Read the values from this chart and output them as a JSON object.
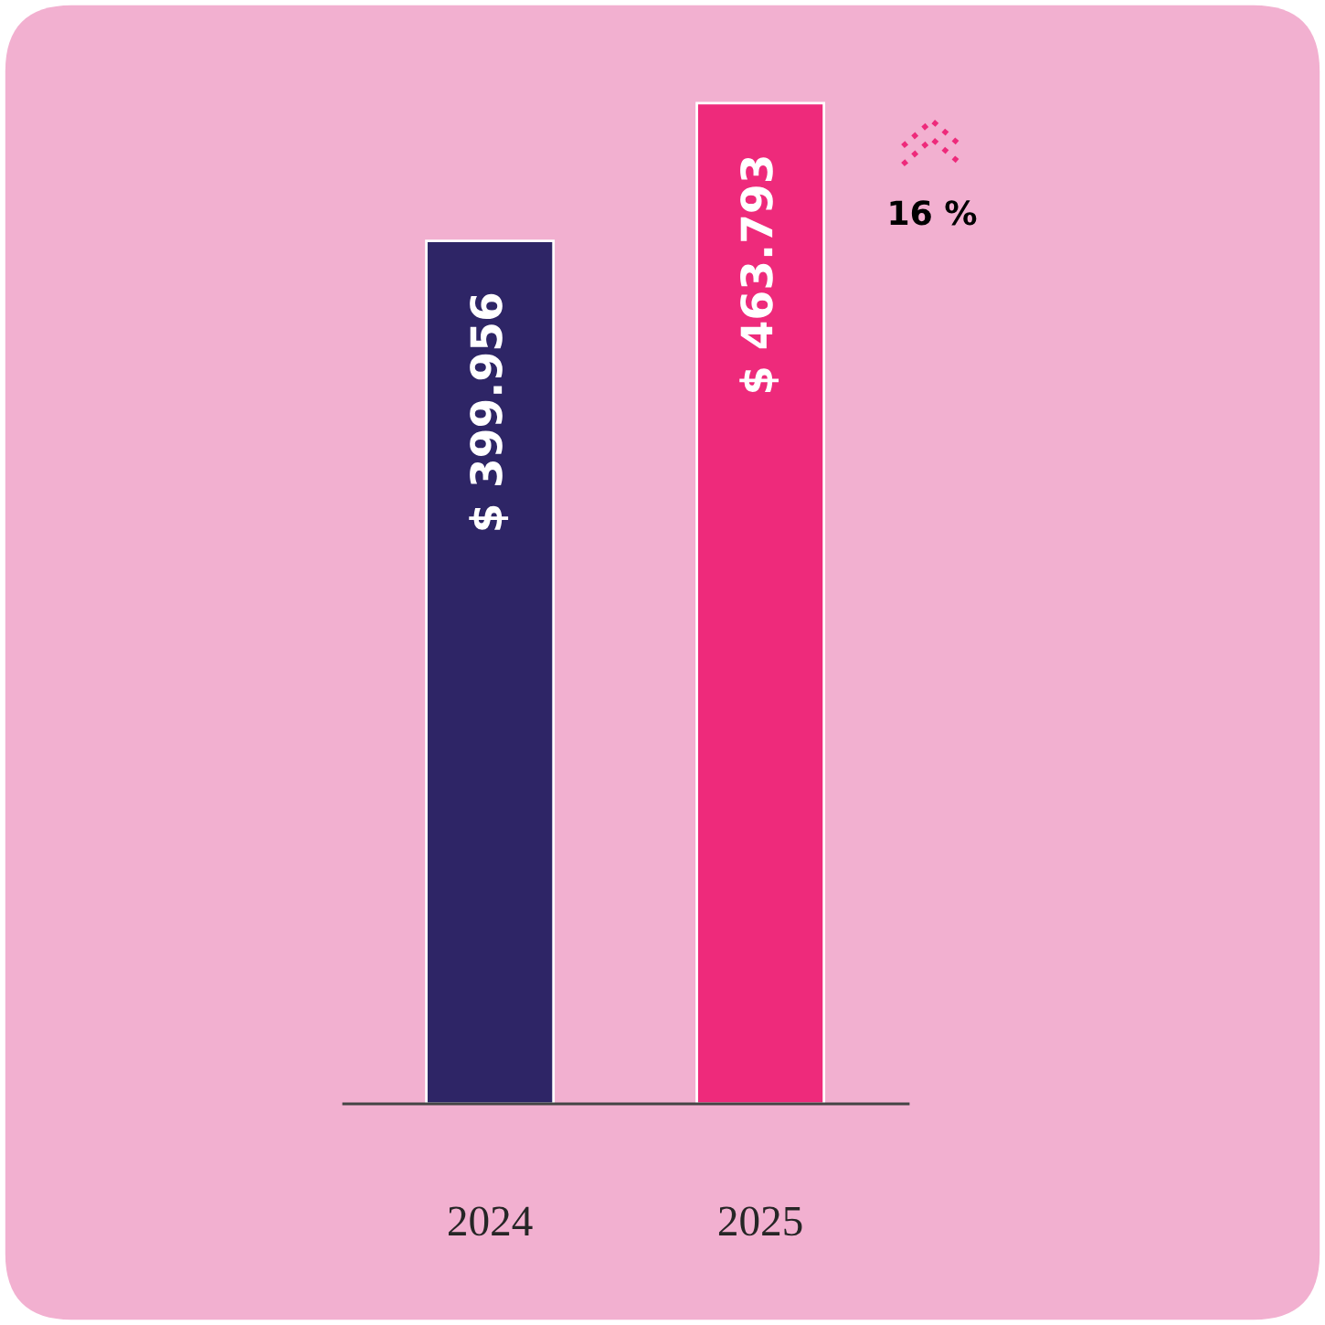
{
  "chart_data": {
    "type": "bar",
    "categories": [
      "2024",
      "2025"
    ],
    "values": [
      399.956,
      463.793
    ],
    "colors": [
      "#2e2566",
      "#ee2a7b"
    ],
    "value_labels": [
      "$ 399.956",
      "$ 463.793"
    ],
    "annotations": [
      "16 %"
    ],
    "legend": false
  }
}
